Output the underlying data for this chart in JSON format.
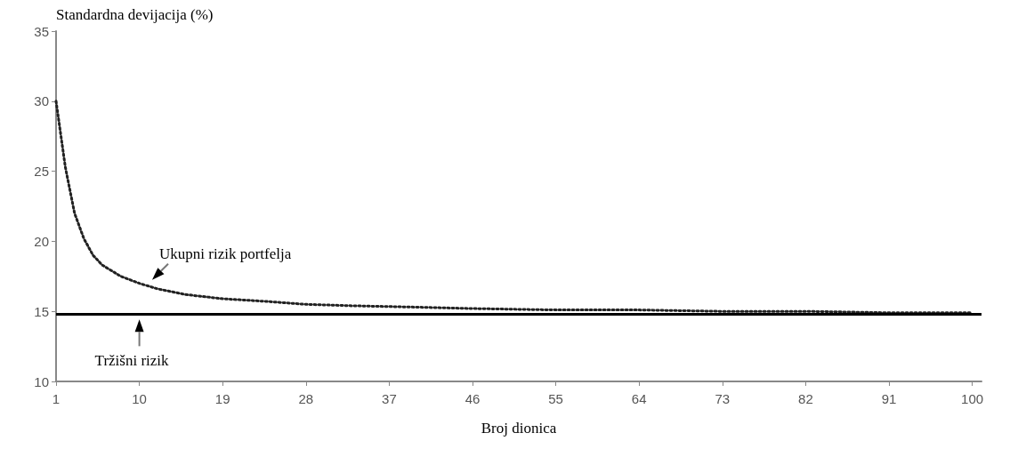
{
  "chart_data": {
    "type": "line",
    "ylabel": "Standardna devijacija (%)",
    "xlabel": "Broj dionica",
    "x": [
      1,
      2,
      3,
      4,
      5,
      6,
      8,
      10,
      12,
      15,
      19,
      24,
      28,
      33,
      40,
      46,
      55,
      64,
      73,
      82,
      91,
      100
    ],
    "series": [
      {
        "color": "#222222",
        "line_style": "dotted",
        "values": [
          30,
          25.3,
          22,
          20.2,
          19,
          18.3,
          17.5,
          17,
          16.6,
          16.2,
          15.9,
          15.7,
          15.5,
          15.4,
          15.3,
          15.2,
          15.1,
          15.1,
          15.0,
          15.0,
          14.9,
          14.9
        ]
      }
    ],
    "xlim": [
      1,
      101
    ],
    "xticks": [
      1,
      10,
      19,
      28,
      37,
      46,
      55,
      64,
      73,
      82,
      91,
      100
    ],
    "ylim": [
      10,
      35
    ],
    "yticks": [
      10,
      15,
      20,
      25,
      30,
      35
    ],
    "ref_lines": [
      {
        "axis": "y",
        "value": 14.8,
        "color": "#000000",
        "line_style": "solid"
      }
    ],
    "annotations": [
      {
        "text": "Ukupni rizik portfelja",
        "x": 11,
        "y": 17
      },
      {
        "text": "Tržišni rizik",
        "x": 10,
        "y": 14.8
      }
    ],
    "grid": false,
    "marker": "none"
  }
}
